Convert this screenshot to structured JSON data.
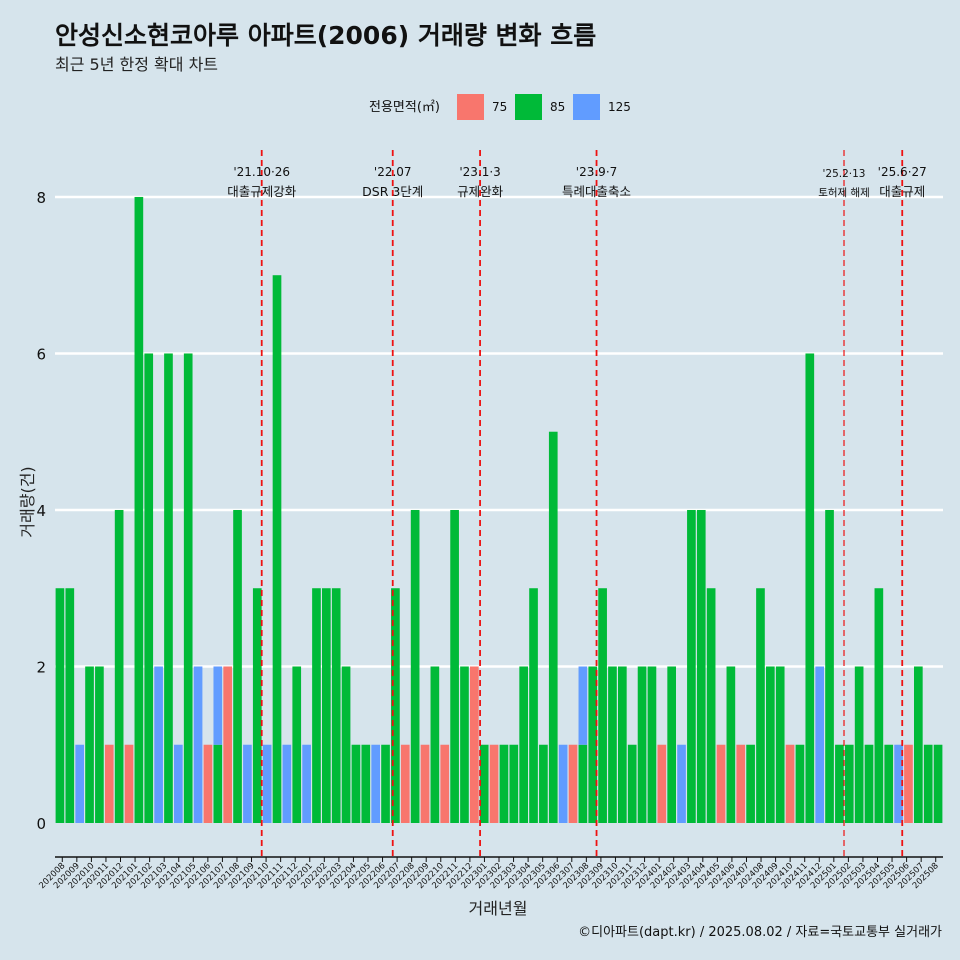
{
  "chart_data": {
    "type": "bar",
    "stacked": true,
    "title": "안성신소현코아루 아파트(2006) 거래량 변화 흐름",
    "subtitle": "최근 5년 한정 확대 차트",
    "xlabel": "거래년월",
    "ylabel": "거래량(건)",
    "ylim": [
      0,
      8.6
    ],
    "yticks": [
      0,
      2,
      4,
      6,
      8
    ],
    "grid": "horizontal",
    "legend": {
      "title": "전용면적(㎡)",
      "position": "top",
      "items": [
        {
          "label": "75",
          "color": "#f8766d"
        },
        {
          "label": "85",
          "color": "#00ba38"
        },
        {
          "label": "125",
          "color": "#619cff"
        }
      ]
    },
    "categories": [
      "202008",
      "202009",
      "202010",
      "202011",
      "202012",
      "202101",
      "202102",
      "202103",
      "202104",
      "202105",
      "202106",
      "202107",
      "202108",
      "202109",
      "202110",
      "202111",
      "202112",
      "202201",
      "202202",
      "202203",
      "202204",
      "202205",
      "202206",
      "202207",
      "202208",
      "202209",
      "202210",
      "202211",
      "202212",
      "202301",
      "202302",
      "202303",
      "202304",
      "202305",
      "202306",
      "202307",
      "202308",
      "202309",
      "202310",
      "202311",
      "202312",
      "202401",
      "202402",
      "202403",
      "202404",
      "202405",
      "202406",
      "202407",
      "202408",
      "202409",
      "202410",
      "202411",
      "202412",
      "202501",
      "202502",
      "202503",
      "202504",
      "202505",
      "202506",
      "202507",
      "202508"
    ],
    "bars": [
      {
        "x": "202008",
        "segments": [
          {
            "s": "85",
            "v": 3
          }
        ]
      },
      {
        "x": "202008",
        "segments": [
          {
            "s": "85",
            "v": 3
          }
        ]
      },
      {
        "x": "202009",
        "segments": [
          {
            "s": "125",
            "v": 1
          }
        ]
      },
      {
        "x": "202009",
        "segments": [
          {
            "s": "85",
            "v": 2
          }
        ]
      },
      {
        "x": "202010",
        "segments": [
          {
            "s": "85",
            "v": 2
          }
        ]
      },
      {
        "x": "202010",
        "segments": [
          {
            "s": "75",
            "v": 1
          }
        ]
      },
      {
        "x": "202011",
        "segments": [
          {
            "s": "85",
            "v": 4
          }
        ]
      },
      {
        "x": "202011",
        "segments": [
          {
            "s": "75",
            "v": 1
          }
        ]
      },
      {
        "x": "202012",
        "segments": [
          {
            "s": "85",
            "v": 8
          }
        ]
      },
      {
        "x": "202012",
        "segments": [
          {
            "s": "85",
            "v": 6
          }
        ]
      },
      {
        "x": "202101",
        "segments": [
          {
            "s": "125",
            "v": 2
          }
        ]
      },
      {
        "x": "202101",
        "segments": [
          {
            "s": "85",
            "v": 6
          }
        ]
      },
      {
        "x": "202102",
        "segments": [
          {
            "s": "125",
            "v": 1
          }
        ]
      },
      {
        "x": "202102",
        "segments": [
          {
            "s": "85",
            "v": 6
          }
        ]
      },
      {
        "x": "202103",
        "segments": [
          {
            "s": "125",
            "v": 2
          }
        ]
      },
      {
        "x": "202103",
        "segments": [
          {
            "s": "75",
            "v": 1
          }
        ]
      },
      {
        "x": "202104",
        "segments": [
          {
            "s": "85",
            "v": 1
          },
          {
            "s": "125",
            "v": 1
          }
        ]
      },
      {
        "x": "202104",
        "segments": [
          {
            "s": "75",
            "v": 2
          }
        ]
      },
      {
        "x": "202105",
        "segments": [
          {
            "s": "85",
            "v": 4
          }
        ]
      },
      {
        "x": "202105",
        "segments": [
          {
            "s": "125",
            "v": 1
          }
        ]
      },
      {
        "x": "202106",
        "segments": [
          {
            "s": "85",
            "v": 3
          }
        ]
      },
      {
        "x": "202106",
        "segments": [
          {
            "s": "125",
            "v": 1
          }
        ]
      },
      {
        "x": "202107",
        "segments": [
          {
            "s": "85",
            "v": 7
          }
        ]
      },
      {
        "x": "202107",
        "segments": [
          {
            "s": "125",
            "v": 1
          }
        ]
      },
      {
        "x": "202108",
        "segments": [
          {
            "s": "85",
            "v": 2
          }
        ]
      },
      {
        "x": "202108",
        "segments": [
          {
            "s": "125",
            "v": 1
          }
        ]
      },
      {
        "x": "202109",
        "segments": [
          {
            "s": "85",
            "v": 3
          }
        ]
      },
      {
        "x": "202109",
        "segments": [
          {
            "s": "85",
            "v": 3
          }
        ]
      },
      {
        "x": "202110",
        "segments": [
          {
            "s": "85",
            "v": 3
          }
        ]
      },
      {
        "x": "202111",
        "segments": [
          {
            "s": "85",
            "v": 2
          }
        ]
      },
      {
        "x": "202112",
        "segments": [
          {
            "s": "85",
            "v": 1
          }
        ]
      },
      {
        "x": "202201",
        "segments": [
          {
            "s": "85",
            "v": 1
          }
        ]
      },
      {
        "x": "202201",
        "segments": [
          {
            "s": "125",
            "v": 1
          }
        ]
      },
      {
        "x": "202202",
        "segments": [
          {
            "s": "85",
            "v": 1
          }
        ]
      },
      {
        "x": "202203",
        "segments": [
          {
            "s": "85",
            "v": 3
          }
        ]
      },
      {
        "x": "202204",
        "segments": [
          {
            "s": "75",
            "v": 1
          }
        ]
      },
      {
        "x": "202204",
        "segments": [
          {
            "s": "85",
            "v": 4
          }
        ]
      },
      {
        "x": "202205",
        "segments": [
          {
            "s": "75",
            "v": 1
          }
        ]
      },
      {
        "x": "202205",
        "segments": [
          {
            "s": "85",
            "v": 2
          }
        ]
      },
      {
        "x": "202206",
        "segments": [
          {
            "s": "75",
            "v": 1
          }
        ]
      },
      {
        "x": "202206",
        "segments": [
          {
            "s": "85",
            "v": 4
          }
        ]
      },
      {
        "x": "202207",
        "segments": [
          {
            "s": "85",
            "v": 2
          }
        ]
      },
      {
        "x": "202207",
        "segments": [
          {
            "s": "75",
            "v": 2
          }
        ]
      },
      {
        "x": "202208",
        "segments": [
          {
            "s": "85",
            "v": 1
          }
        ]
      },
      {
        "x": "202208",
        "segments": [
          {
            "s": "75",
            "v": 1
          }
        ]
      },
      {
        "x": "202209",
        "segments": [
          {
            "s": "85",
            "v": 1
          }
        ]
      },
      {
        "x": "202210",
        "segments": [
          {
            "s": "85",
            "v": 1
          }
        ]
      },
      {
        "x": "202211",
        "segments": [
          {
            "s": "85",
            "v": 2
          }
        ]
      },
      {
        "x": "202212",
        "segments": [
          {
            "s": "85",
            "v": 3
          }
        ]
      },
      {
        "x": "202301",
        "segments": [
          {
            "s": "85",
            "v": 1
          }
        ]
      },
      {
        "x": "202302",
        "segments": [
          {
            "s": "85",
            "v": 5
          }
        ]
      },
      {
        "x": "202303",
        "segments": [
          {
            "s": "125",
            "v": 1
          }
        ]
      },
      {
        "x": "202303",
        "segments": [
          {
            "s": "75",
            "v": 1
          }
        ]
      },
      {
        "x": "202304",
        "segments": [
          {
            "s": "85",
            "v": 1
          },
          {
            "s": "125",
            "v": 1
          }
        ]
      },
      {
        "x": "202305",
        "segments": [
          {
            "s": "85",
            "v": 2
          }
        ]
      },
      {
        "x": "202306",
        "segments": [
          {
            "s": "85",
            "v": 3
          }
        ]
      },
      {
        "x": "202307",
        "segments": [
          {
            "s": "85",
            "v": 2
          }
        ]
      },
      {
        "x": "202308",
        "segments": [
          {
            "s": "85",
            "v": 2
          }
        ]
      },
      {
        "x": "202309",
        "segments": [
          {
            "s": "85",
            "v": 1
          }
        ]
      },
      {
        "x": "202310",
        "segments": [
          {
            "s": "85",
            "v": 2
          }
        ]
      },
      {
        "x": "202311",
        "segments": [
          {
            "s": "85",
            "v": 2
          }
        ]
      },
      {
        "x": "202312",
        "segments": [
          {
            "s": "75",
            "v": 1
          }
        ]
      },
      {
        "x": "202401",
        "segments": [
          {
            "s": "85",
            "v": 2
          }
        ]
      },
      {
        "x": "202401",
        "segments": [
          {
            "s": "125",
            "v": 1
          }
        ]
      },
      {
        "x": "202402",
        "segments": [
          {
            "s": "85",
            "v": 4
          }
        ]
      },
      {
        "x": "202403",
        "segments": [
          {
            "s": "85",
            "v": 4
          }
        ]
      },
      {
        "x": "202404",
        "segments": [
          {
            "s": "85",
            "v": 3
          }
        ]
      },
      {
        "x": "202405",
        "segments": [
          {
            "s": "75",
            "v": 1
          }
        ]
      },
      {
        "x": "202405",
        "segments": [
          {
            "s": "85",
            "v": 2
          }
        ]
      },
      {
        "x": "202406",
        "segments": [
          {
            "s": "75",
            "v": 1
          }
        ]
      },
      {
        "x": "202406",
        "segments": [
          {
            "s": "85",
            "v": 1
          }
        ]
      },
      {
        "x": "202407",
        "segments": [
          {
            "s": "85",
            "v": 3
          }
        ]
      },
      {
        "x": "202408",
        "segments": [
          {
            "s": "85",
            "v": 2
          }
        ]
      },
      {
        "x": "202409",
        "segments": [
          {
            "s": "85",
            "v": 2
          }
        ]
      },
      {
        "x": "202410",
        "segments": [
          {
            "s": "75",
            "v": 1
          }
        ]
      },
      {
        "x": "202410",
        "segments": [
          {
            "s": "85",
            "v": 1
          }
        ]
      },
      {
        "x": "202411",
        "segments": [
          {
            "s": "85",
            "v": 6
          }
        ]
      },
      {
        "x": "202411",
        "segments": [
          {
            "s": "125",
            "v": 2
          }
        ]
      },
      {
        "x": "202412",
        "segments": [
          {
            "s": "85",
            "v": 4
          }
        ]
      },
      {
        "x": "202501",
        "segments": [
          {
            "s": "85",
            "v": 1
          }
        ]
      },
      {
        "x": "202502",
        "segments": [
          {
            "s": "85",
            "v": 1
          }
        ]
      },
      {
        "x": "202503",
        "segments": [
          {
            "s": "85",
            "v": 2
          }
        ]
      },
      {
        "x": "202504",
        "segments": [
          {
            "s": "85",
            "v": 1
          }
        ]
      },
      {
        "x": "202505",
        "segments": [
          {
            "s": "85",
            "v": 3
          }
        ]
      },
      {
        "x": "202505",
        "segments": [
          {
            "s": "85",
            "v": 1
          }
        ]
      },
      {
        "x": "202506",
        "segments": [
          {
            "s": "125",
            "v": 1
          }
        ]
      },
      {
        "x": "202506",
        "segments": [
          {
            "s": "75",
            "v": 1
          }
        ]
      },
      {
        "x": "202506",
        "segments": [
          {
            "s": "85",
            "v": 2
          }
        ]
      },
      {
        "x": "202507",
        "segments": [
          {
            "s": "85",
            "v": 1
          }
        ]
      },
      {
        "x": "202508",
        "segments": [
          {
            "s": "85",
            "v": 1
          }
        ]
      }
    ],
    "events": [
      {
        "date": "'21.10·26",
        "label": "대출규제강화",
        "x": "202110",
        "size": "normal"
      },
      {
        "date": "'22.07",
        "label": "DSR 3단계",
        "x": "202207",
        "size": "normal"
      },
      {
        "date": "'23.1·3",
        "label": "규제완화",
        "x": "202301",
        "size": "normal"
      },
      {
        "date": "'23.9·7",
        "label": "특례대출축소",
        "x": "202309",
        "size": "normal"
      },
      {
        "date": "'25.2·13",
        "label": "토허제 해제",
        "x": "202502",
        "size": "small"
      },
      {
        "date": "'25.6·27",
        "label": "대출규제",
        "x": "202506",
        "size": "normal"
      }
    ],
    "caption": "©디아파트(dapt.kr) / 2025.08.02 / 자료=국토교통부 실거래가"
  }
}
